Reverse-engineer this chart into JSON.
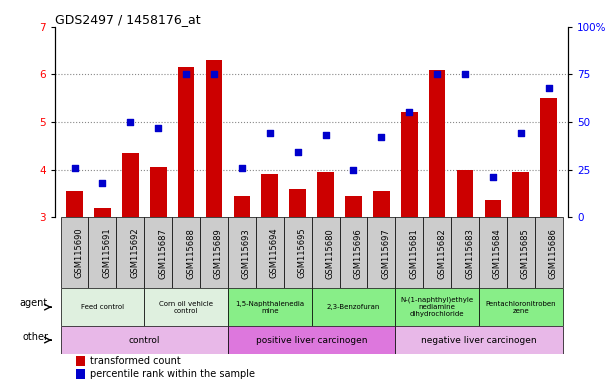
{
  "title": "GDS2497 / 1458176_at",
  "samples": [
    "GSM115690",
    "GSM115691",
    "GSM115692",
    "GSM115687",
    "GSM115688",
    "GSM115689",
    "GSM115693",
    "GSM115694",
    "GSM115695",
    "GSM115680",
    "GSM115696",
    "GSM115697",
    "GSM115681",
    "GSM115682",
    "GSM115683",
    "GSM115684",
    "GSM115685",
    "GSM115686"
  ],
  "transformed_count": [
    3.55,
    3.2,
    4.35,
    4.05,
    6.15,
    6.3,
    3.45,
    3.9,
    3.6,
    3.95,
    3.45,
    3.55,
    5.2,
    6.1,
    4.0,
    3.35,
    3.95,
    5.5
  ],
  "percentile_rank": [
    26,
    18,
    50,
    47,
    75,
    75,
    26,
    44,
    34,
    43,
    25,
    42,
    55,
    75,
    75,
    21,
    44,
    68
  ],
  "ylim_left": [
    3,
    7
  ],
  "ylim_right": [
    0,
    100
  ],
  "yticks_left": [
    3,
    4,
    5,
    6,
    7
  ],
  "yticks_right": [
    0,
    25,
    50,
    75,
    100
  ],
  "bar_color": "#cc0000",
  "dot_color": "#0000cc",
  "grid_color": "#888888",
  "agent_groups": [
    {
      "label": "Feed control",
      "start": 0,
      "end": 3,
      "color": "#dff0df"
    },
    {
      "label": "Corn oil vehicle\ncontrol",
      "start": 3,
      "end": 6,
      "color": "#dff0df"
    },
    {
      "label": "1,5-Naphthalenedia\nmine",
      "start": 6,
      "end": 9,
      "color": "#88ee88"
    },
    {
      "label": "2,3-Benzofuran",
      "start": 9,
      "end": 12,
      "color": "#88ee88"
    },
    {
      "label": "N-(1-naphthyl)ethyle\nnediamine\ndihydrochloride",
      "start": 12,
      "end": 15,
      "color": "#88ee88"
    },
    {
      "label": "Pentachloronitroben\nzene",
      "start": 15,
      "end": 18,
      "color": "#88ee88"
    }
  ],
  "other_groups": [
    {
      "label": "control",
      "start": 0,
      "end": 6,
      "color": "#e8b8e8"
    },
    {
      "label": "positive liver carcinogen",
      "start": 6,
      "end": 12,
      "color": "#dd77dd"
    },
    {
      "label": "negative liver carcinogen",
      "start": 12,
      "end": 18,
      "color": "#e8b8e8"
    }
  ],
  "legend_bar_label": "transformed count",
  "legend_dot_label": "percentile rank within the sample",
  "bar_color_legend": "#cc0000",
  "dot_color_legend": "#0000cc",
  "agent_label": "agent",
  "other_label": "other",
  "xtick_bg_color": "#cccccc",
  "xtick_fontsize": 6,
  "title_fontsize": 9
}
